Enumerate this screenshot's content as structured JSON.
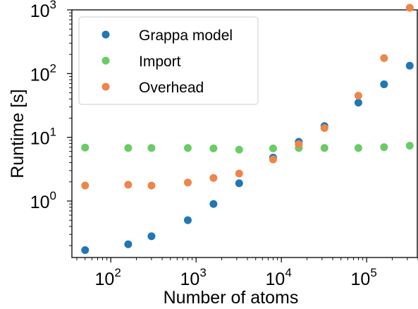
{
  "chart_data": {
    "type": "scatter",
    "xlabel": "Number of atoms",
    "ylabel": "Runtime [s]",
    "x_scale": "log",
    "y_scale": "log",
    "xlim": [
      35,
      400000
    ],
    "ylim": [
      0.13,
      1000
    ],
    "grid": false,
    "legend": "top-left",
    "x_ticks": [
      {
        "value": 100,
        "mantissa": "10",
        "exp": "2"
      },
      {
        "value": 1000,
        "mantissa": "10",
        "exp": "3"
      },
      {
        "value": 10000,
        "mantissa": "10",
        "exp": "4"
      },
      {
        "value": 100000,
        "mantissa": "10",
        "exp": "5"
      }
    ],
    "y_ticks": [
      {
        "value": 1,
        "mantissa": "10",
        "exp": "0"
      },
      {
        "value": 10,
        "mantissa": "10",
        "exp": "1"
      },
      {
        "value": 100,
        "mantissa": "10",
        "exp": "2"
      },
      {
        "value": 1000,
        "mantissa": "10",
        "exp": "3"
      }
    ],
    "x": [
      50,
      160,
      300,
      800,
      1600,
      3200,
      8000,
      16000,
      32000,
      80000,
      160000,
      320000
    ],
    "series": [
      {
        "name": "Grappa model",
        "color": "#1f77b4",
        "values": [
          0.17,
          0.21,
          0.28,
          0.5,
          0.9,
          1.9,
          4.8,
          8.5,
          15,
          35,
          68,
          133
        ]
      },
      {
        "name": "Import",
        "color": "#6acc64",
        "values": [
          6.9,
          6.8,
          6.8,
          6.8,
          6.7,
          6.4,
          6.7,
          6.8,
          6.8,
          6.8,
          7.0,
          7.4
        ]
      },
      {
        "name": "Overhead",
        "color": "#ee854a",
        "values": [
          1.75,
          1.8,
          1.75,
          1.95,
          2.3,
          2.7,
          4.5,
          7.8,
          14,
          45,
          175,
          1080
        ]
      }
    ]
  }
}
